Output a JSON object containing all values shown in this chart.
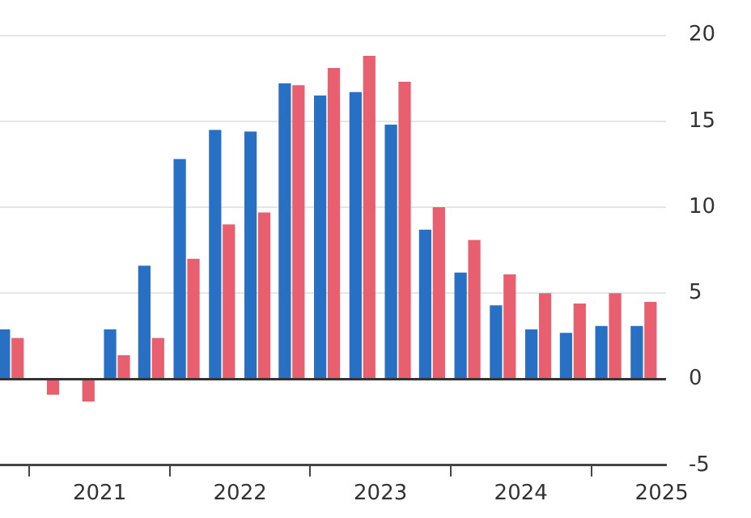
{
  "chart_data": {
    "type": "bar",
    "x": [
      "2020-05-15",
      "2020-08-15",
      "2020-11-15",
      "2021-02-15",
      "2021-05-15",
      "2021-08-15",
      "2021-11-15",
      "2022-02-15",
      "2022-05-15",
      "2022-08-15",
      "2022-11-15",
      "2023-02-15",
      "2023-05-15",
      "2023-08-15",
      "2023-11-15",
      "2024-02-15",
      "2024-05-15",
      "2024-08-15",
      "2024-11-15"
    ],
    "series": [
      {
        "color": "#2870c4",
        "values": [
          2.9,
          0,
          0,
          2.9,
          6.6,
          12.8,
          14.5,
          14.4,
          17.2,
          16.5,
          16.7,
          14.8,
          8.7,
          6.2,
          4.3,
          2.9,
          2.7,
          3.1,
          3.1
        ]
      },
      {
        "color": "#e8606f",
        "values": [
          2.4,
          -0.9,
          -1.3,
          1.4,
          2.4,
          7.0,
          9.0,
          9.7,
          17.1,
          18.1,
          18.8,
          17.3,
          10.0,
          8.1,
          6.1,
          5.0,
          4.4,
          5.0,
          4.5
        ]
      }
    ],
    "xlim": [
      "2020-04-17",
      "2025-01-12"
    ],
    "xticks": [
      {
        "value": "2021-01-01",
        "label": "2021"
      },
      {
        "value": "2022-01-01",
        "label": "2022"
      },
      {
        "value": "2023-01-01",
        "label": "2023"
      },
      {
        "value": "2024-01-01",
        "label": "2024"
      },
      {
        "value": "2025-01-01",
        "label": "2025"
      }
    ],
    "ylim": [
      -5,
      20
    ],
    "yticks": [
      -5,
      0,
      5,
      10,
      15,
      20
    ],
    "grid": "y",
    "ref_lines": [
      {
        "axis": "y",
        "value": 0,
        "color": "#333333"
      }
    ]
  }
}
